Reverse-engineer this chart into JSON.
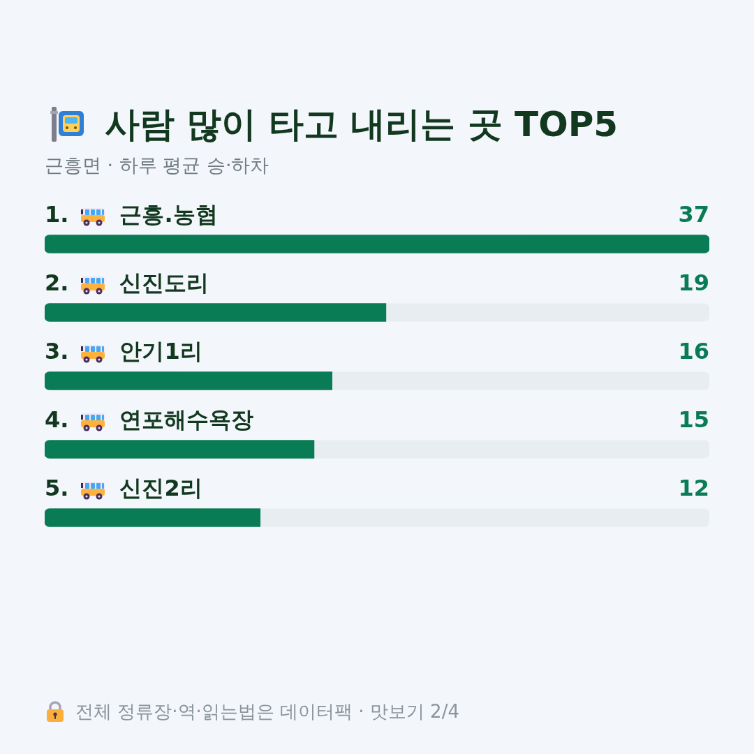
{
  "chart_data": {
    "type": "bar",
    "orientation": "horizontal",
    "title": "사람 많이 타고 내리는 곳 TOP5",
    "subtitle": "근흥면 · 하루 평균 승·하차",
    "categories": [
      "1. 근흥.농협",
      "2. 신진도리",
      "3. 안기1리",
      "4. 연포해수욕장",
      "5. 신진2리"
    ],
    "values": [
      37,
      19,
      16,
      15,
      12
    ],
    "color": "#0a7c55",
    "xlim": [
      0,
      37
    ],
    "data_labels": true,
    "tick_labels": "y",
    "annotations": [
      "전체 정류장·역·읽는법은 데이터팩 · 맛보기 2/4"
    ]
  }
}
